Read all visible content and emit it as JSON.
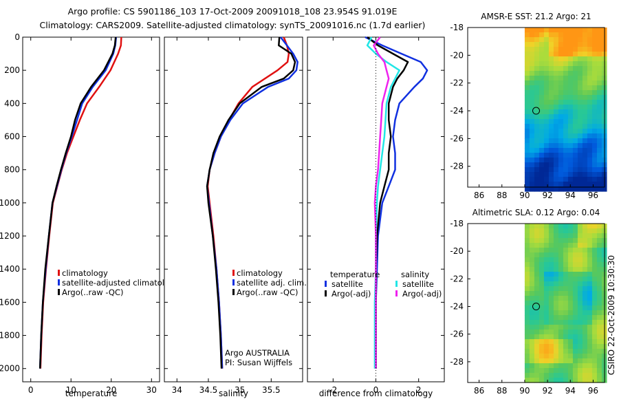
{
  "titles": {
    "line1": "Argo profile: CS 5901186_103 17-Oct-2009 20091018_108 23.954S 91.019E",
    "line2": "Climatology: CARS2009. Satellite-adjusted climatology: synTS_20091016.nc (1.7d earlier)"
  },
  "colors": {
    "red": "#e01010",
    "blue": "#1030e0",
    "black": "#000000",
    "magenta": "#ee22ee",
    "cyan": "#22e6e6"
  },
  "chart_data": [
    {
      "id": "temperature",
      "type": "line",
      "xlabel": "temperature",
      "xlim": [
        -2,
        32
      ],
      "ylim": [
        0,
        2080
      ],
      "xticks": [
        0,
        10,
        20,
        30
      ],
      "yticks": [
        0,
        200,
        400,
        600,
        800,
        1000,
        1200,
        1400,
        1600,
        1800,
        2000
      ],
      "legend": [
        "climatology",
        "satellite-adjusted climatolog",
        "Argo(..raw -QC)"
      ],
      "series": [
        {
          "name": "climatology",
          "color": "red",
          "depth": [
            0,
            50,
            100,
            200,
            300,
            400,
            500,
            600,
            700,
            800,
            900,
            1000,
            1200,
            1400,
            1600,
            1800,
            2000
          ],
          "values": [
            22.5,
            22.4,
            21.7,
            19.8,
            17.0,
            14.0,
            12.2,
            10.6,
            9.0,
            7.7,
            6.6,
            5.5,
            4.6,
            3.8,
            3.1,
            2.7,
            2.4
          ]
        },
        {
          "name": "satellite-adjusted climatolog",
          "color": "blue",
          "depth": [
            0,
            50,
            100,
            200,
            300,
            400,
            500,
            600,
            700,
            800,
            900,
            1000,
            1200,
            1400,
            1600,
            1800,
            2000
          ],
          "values": [
            21.2,
            21.0,
            20.5,
            18.6,
            15.4,
            12.8,
            11.5,
            10.2,
            8.8,
            7.6,
            6.5,
            5.4,
            4.5,
            3.7,
            3.0,
            2.6,
            2.3
          ]
        },
        {
          "name": "Argo(..raw -QC)",
          "color": "black",
          "depth": [
            0,
            50,
            100,
            200,
            300,
            400,
            500,
            600,
            700,
            800,
            900,
            1000,
            1200,
            1400,
            1600,
            1800,
            2000
          ],
          "values": [
            21.1,
            20.9,
            20.3,
            18.2,
            15.0,
            12.4,
            11.0,
            10.0,
            8.7,
            7.5,
            6.4,
            5.4,
            4.5,
            3.6,
            3.0,
            2.6,
            2.3
          ]
        }
      ]
    },
    {
      "id": "salinity",
      "type": "line",
      "xlabel": "salinity",
      "xlim": [
        33.8,
        36.0
      ],
      "ylim": [
        0,
        2080
      ],
      "xticks": [
        34,
        34.5,
        35,
        35.5
      ],
      "xticklabels": [
        "34",
        "34.5",
        "35",
        "35.5"
      ],
      "yticks": [
        0,
        200,
        400,
        600,
        800,
        1000,
        1200,
        1400,
        1600,
        1800,
        2000
      ],
      "legend": [
        "climatology",
        "satellite adj. clim.",
        "Argo(..raw -QC)"
      ],
      "annotations": [
        "Argo AUSTRALIA",
        "PI: Susan Wijffels"
      ],
      "series": [
        {
          "name": "climatology",
          "color": "red",
          "depth": [
            0,
            50,
            100,
            150,
            200,
            300,
            400,
            500,
            600,
            700,
            800,
            900,
            1000,
            1200,
            1400,
            1600,
            1800,
            2000
          ],
          "values": [
            35.7,
            35.75,
            35.78,
            35.76,
            35.6,
            35.2,
            34.98,
            34.83,
            34.7,
            34.6,
            34.52,
            34.49,
            34.52,
            34.58,
            34.63,
            34.67,
            34.7,
            34.72
          ]
        },
        {
          "name": "satellite adj. clim.",
          "color": "blue",
          "depth": [
            0,
            50,
            100,
            150,
            200,
            250,
            300,
            400,
            500,
            600,
            700,
            800,
            900,
            1000,
            1200,
            1400,
            1600,
            1800,
            2000
          ],
          "values": [
            35.65,
            35.75,
            35.85,
            35.92,
            35.9,
            35.78,
            35.45,
            35.05,
            34.85,
            34.7,
            34.6,
            34.52,
            34.48,
            34.51,
            34.57,
            34.63,
            34.67,
            34.7,
            34.72
          ]
        },
        {
          "name": "Argo(..raw -QC)",
          "color": "black",
          "depth": [
            0,
            50,
            100,
            150,
            200,
            250,
            300,
            400,
            500,
            600,
            700,
            800,
            900,
            1000,
            1200,
            1400,
            1600,
            1800,
            2000
          ],
          "values": [
            35.63,
            35.62,
            35.82,
            35.88,
            35.85,
            35.7,
            35.35,
            35.0,
            34.82,
            34.68,
            34.58,
            34.52,
            34.48,
            34.5,
            34.57,
            34.62,
            34.66,
            34.69,
            34.71
          ]
        }
      ]
    },
    {
      "id": "difference",
      "type": "line",
      "xlabel": "difference from climatology",
      "xlim": [
        -3.2,
        3.2
      ],
      "ylim": [
        0,
        2080
      ],
      "xticks": [
        -2,
        0,
        2
      ],
      "yticks": [
        0,
        200,
        400,
        600,
        800,
        1000,
        1200,
        1400,
        1600,
        1800,
        2000
      ],
      "legend_headers": [
        "temperature",
        "salinity"
      ],
      "legend": [
        "satellite",
        "Argo(-adj)",
        "satellite",
        "Argo(-adj)"
      ],
      "series": [
        {
          "name": "temperature satellite",
          "color": "blue",
          "depth": [
            0,
            50,
            100,
            150,
            200,
            250,
            300,
            400,
            500,
            600,
            700,
            800,
            900,
            1000,
            1200,
            1400,
            1600,
            1800,
            2000
          ],
          "values": [
            -0.5,
            0.3,
            1.2,
            2.1,
            2.4,
            2.2,
            1.8,
            1.1,
            0.9,
            0.8,
            0.9,
            0.9,
            0.6,
            0.3,
            0.1,
            0.05,
            0.0,
            0.0,
            0.0
          ]
        },
        {
          "name": "temperature Argo(-adj)",
          "color": "black",
          "depth": [
            0,
            50,
            100,
            150,
            200,
            250,
            300,
            400,
            500,
            600,
            700,
            800,
            900,
            1000,
            1200,
            1400,
            1600,
            1800,
            2000
          ],
          "values": [
            -0.4,
            0.1,
            0.8,
            1.5,
            1.3,
            1.0,
            0.8,
            0.6,
            0.6,
            0.7,
            0.6,
            0.6,
            0.4,
            0.2,
            0.05,
            0.0,
            0.0,
            0.0,
            0.0
          ]
        },
        {
          "name": "salinity satellite",
          "color": "cyan",
          "depth": [
            0,
            50,
            100,
            150,
            200,
            250,
            300,
            400,
            500,
            600,
            700,
            800,
            900,
            1000,
            1200,
            1400,
            1600,
            1800,
            2000
          ],
          "values": [
            -0.2,
            -0.4,
            0.0,
            0.5,
            1.1,
            0.9,
            0.7,
            0.5,
            0.45,
            0.4,
            0.3,
            0.2,
            0.1,
            0.05,
            0.0,
            0.0,
            -0.05,
            -0.05,
            -0.05
          ]
        },
        {
          "name": "salinity Argo(-adj)",
          "color": "magenta",
          "depth": [
            0,
            50,
            100,
            150,
            200,
            250,
            300,
            400,
            500,
            600,
            700,
            800,
            900,
            1000,
            1200,
            1400,
            1600,
            1800,
            2000
          ],
          "values": [
            0.2,
            -0.1,
            0.1,
            0.4,
            0.5,
            0.6,
            0.5,
            0.3,
            0.25,
            0.2,
            0.15,
            0.1,
            0.0,
            -0.05,
            0.0,
            0.0,
            0.0,
            0.0,
            0.0
          ]
        }
      ]
    },
    {
      "id": "sst_map",
      "type": "heatmap",
      "title": "AMSR-E SST: 21.2 Argo: 21",
      "xlim": [
        85,
        97
      ],
      "ylim": [
        -29.5,
        -18
      ],
      "xticks": [
        86,
        88,
        90,
        92,
        94,
        96
      ],
      "yticks": [
        -18,
        -20,
        -22,
        -24,
        -26,
        -28
      ],
      "data_lon_start": 90,
      "marker": {
        "lon": 91.0,
        "lat": -24.0
      }
    },
    {
      "id": "sla_map",
      "type": "heatmap",
      "title": "Altimetric SLA: 0.12 Argo: 0.04",
      "xlim": [
        85,
        97
      ],
      "ylim": [
        -29.5,
        -18
      ],
      "xticks": [
        86,
        88,
        90,
        92,
        94,
        96
      ],
      "yticks": [
        -18,
        -20,
        -22,
        -24,
        -26,
        -28
      ],
      "data_lon_start": 90,
      "marker": {
        "lon": 91.0,
        "lat": -24.0
      }
    }
  ],
  "side_text": "CSIRO 22-Oct-2009 10:30:30"
}
